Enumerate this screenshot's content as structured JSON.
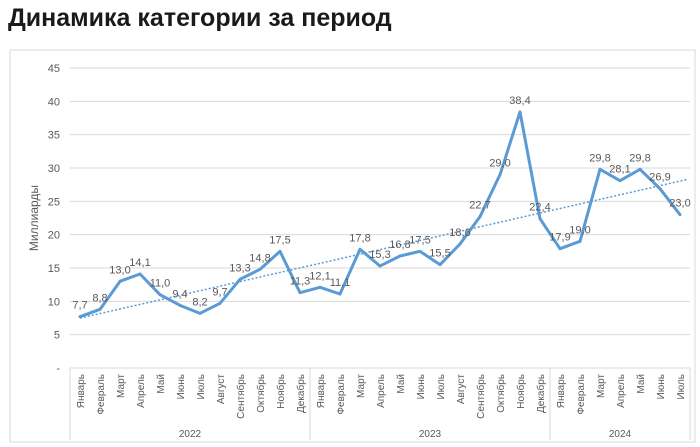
{
  "page_title": "Динамика категории за период",
  "chart_data": {
    "type": "line",
    "title": "Динамика категории за период",
    "ylabel": "Миллиарды",
    "xlabel": "",
    "ylim": [
      0,
      45
    ],
    "yticks": [
      0,
      5,
      10,
      15,
      20,
      25,
      30,
      35,
      40,
      45
    ],
    "ytick_labels": [
      "-",
      "5",
      "10",
      "15",
      "20",
      "25",
      "30",
      "35",
      "40",
      "45"
    ],
    "grid": true,
    "trendline": "linear, dotted",
    "groups": [
      {
        "year": "2022",
        "count": 12
      },
      {
        "year": "2023",
        "count": 12
      },
      {
        "year": "2024",
        "count": 7
      }
    ],
    "categories": [
      "Январь",
      "Февраль",
      "Март",
      "Апрель",
      "Май",
      "Июнь",
      "Июль",
      "Август",
      "Сентябрь",
      "Октябрь",
      "Ноябрь",
      "Декабрь",
      "Январь",
      "Февраль",
      "Март",
      "Апрель",
      "Май",
      "Июнь",
      "Июль",
      "Август",
      "Сентябрь",
      "Октябрь",
      "Ноябрь",
      "Декабрь",
      "Январь",
      "Февраль",
      "Март",
      "Апрель",
      "Май",
      "Июнь",
      "Июль"
    ],
    "values": [
      7.7,
      8.8,
      13.0,
      14.1,
      11.0,
      9.4,
      8.2,
      9.7,
      13.3,
      14.8,
      17.5,
      11.3,
      12.1,
      11.1,
      17.8,
      15.3,
      16.8,
      17.5,
      15.5,
      18.6,
      22.7,
      29.0,
      38.4,
      22.4,
      17.9,
      19.0,
      29.8,
      28.1,
      29.8,
      26.9,
      23.0
    ],
    "data_labels": [
      "7,7",
      "8,8",
      "13,0",
      "14,1",
      "11,0",
      "9,4",
      "8,2",
      "9,7",
      "13,3",
      "14,8",
      "17,5",
      "11,3",
      "12,1",
      "11,1",
      "17,8",
      "15,3",
      "16,8",
      "17,5",
      "15,5",
      "18,6",
      "22,7",
      "29,0",
      "38,4",
      "22,4",
      "17,9",
      "19,0",
      "29,8",
      "28,1",
      "29,8",
      "26,9",
      "23,0"
    ],
    "colors": {
      "line": "#5b9bd5",
      "grid": "#d9d9d9",
      "text": "#595959"
    }
  }
}
